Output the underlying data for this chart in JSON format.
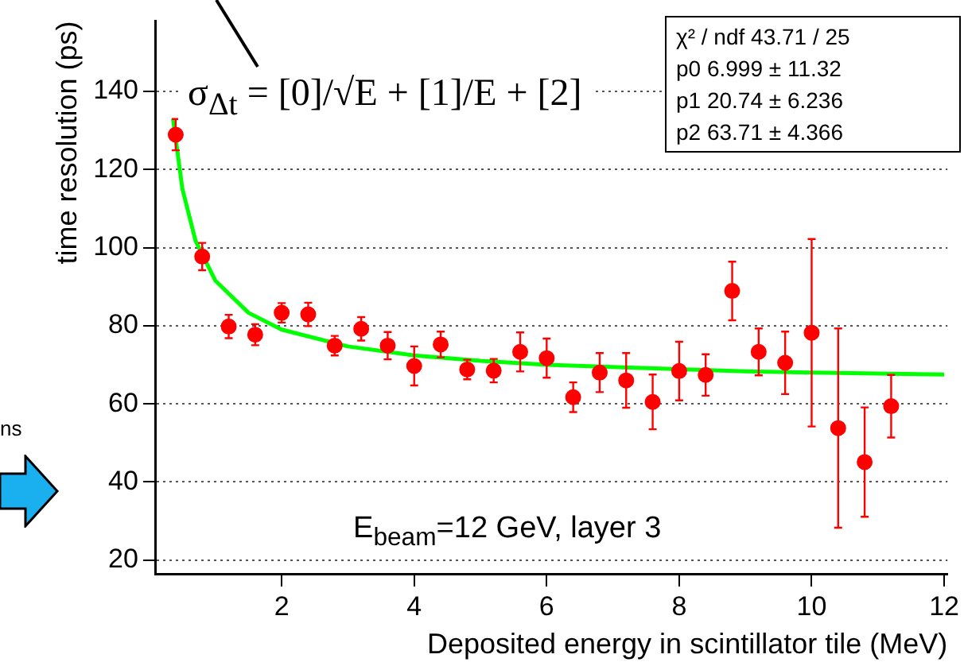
{
  "chart_data": {
    "type": "scatter",
    "xlabel": "Deposited energy in scintillator tile (MeV)",
    "ylabel": "time resolution (ps)",
    "x": [
      0.4,
      0.8,
      1.2,
      1.6,
      2.0,
      2.4,
      2.8,
      3.2,
      3.6,
      4.0,
      4.4,
      4.8,
      5.2,
      5.6,
      6.0,
      6.4,
      6.8,
      7.2,
      7.6,
      8.0,
      8.4,
      8.8,
      9.2,
      9.6,
      10.0,
      10.4,
      10.8,
      11.2
    ],
    "series": [
      {
        "color": "#ff0000",
        "values": [
          128.9,
          97.7,
          79.8,
          77.7,
          83.3,
          82.9,
          74.9,
          79.2,
          74.9,
          69.7,
          75.2,
          68.8,
          68.5,
          73.3,
          71.7,
          61.7,
          68.0,
          66.0,
          60.5,
          68.4,
          67.4,
          88.9,
          73.3,
          70.5,
          78.2,
          53.8,
          45.1,
          59.4
        ],
        "errors": [
          4,
          3.5,
          3,
          2.7,
          2.5,
          3,
          2.5,
          3,
          3.5,
          5,
          3.3,
          2.5,
          3,
          5,
          5,
          3.8,
          5,
          7,
          7,
          7.5,
          5.3,
          7.5,
          6,
          8,
          24,
          25.5,
          14,
          8
        ]
      },
      {
        "type": "line",
        "marker": "none",
        "color": "#00ff00",
        "x": [
          0.36,
          0.5,
          0.7,
          1,
          1.5,
          2,
          3,
          4,
          5,
          6,
          9,
          10,
          12
        ],
        "values": [
          133.0,
          115.1,
          101.7,
          91.5,
          83.3,
          79.0,
          74.7,
          72.4,
          71.0,
          70.0,
          68.3,
          68.0,
          67.5
        ]
      }
    ],
    "marker": "circle",
    "xlim": [
      0.1,
      12.05
    ],
    "ylim": [
      16.5,
      158
    ],
    "xticks": [
      2,
      4,
      6,
      8,
      10,
      12
    ],
    "yticks": [
      20,
      40,
      60,
      80,
      100,
      120,
      140
    ],
    "grid": "y",
    "legend": false,
    "annotations": [
      "σ$_{Δt}$ = [0]/√E + [1]/E + [2]",
      "χ² / ndf 43.71 / 25",
      "p0 6.999 ± 11.32",
      "p1 20.74 ± 6.236",
      "p2 63.71 ± 4.366",
      "E$_{beam}$=12 GeV, layer 3",
      "ns"
    ]
  }
}
